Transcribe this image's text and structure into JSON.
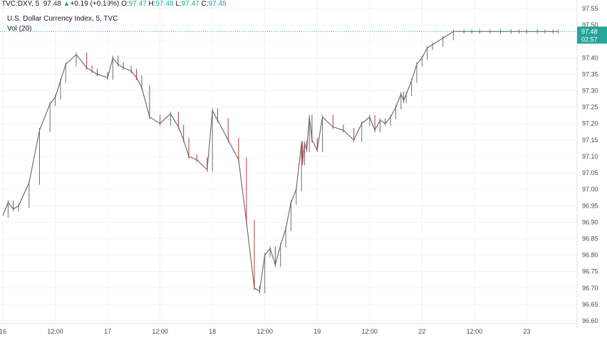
{
  "header": {
    "symbol": "TVC:DXY, 5",
    "last": "97.48",
    "change_arrow": "▲",
    "change": "+0.19 (+0.19%)",
    "o_label": "O:",
    "o_value": "97.47",
    "h_label": "H:",
    "h_value": "97.48",
    "l_label": "L:",
    "l_value": "97.47",
    "c_label": "C:",
    "c_value": "97.48"
  },
  "legend": {
    "title": "U.S. Dollar Currency Index, 5, TVC",
    "volume": "Vol (20)"
  },
  "price_badge": {
    "value": "97.48",
    "timer": "02:57"
  },
  "colors": {
    "up": "#26a69a",
    "down": "#ef5350",
    "candle_up": "#6f6f6f",
    "candle_down": "#b23b3b",
    "grid": "#f0f3fa",
    "price_line": "#26a69a",
    "badge": "#26a69a"
  },
  "chart_data": {
    "type": "line",
    "title": "U.S. Dollar Currency Index, 5, TVC",
    "y_ticks": [
      "97.55",
      "97.50",
      "97.45",
      "97.40",
      "97.35",
      "97.30",
      "97.25",
      "97.20",
      "97.15",
      "97.10",
      "97.05",
      "97.00",
      "96.95",
      "96.90",
      "96.85",
      "96.80",
      "96.75",
      "96.70",
      "96.65",
      "96.60"
    ],
    "ylim": [
      96.6,
      97.55
    ],
    "x_ticks": [
      "16",
      "12:00",
      "17",
      "12:00",
      "18",
      "12:00",
      "19",
      "12:00",
      "22",
      "12:00",
      "23"
    ],
    "x_tick_index": [
      0,
      1,
      2,
      3,
      4,
      5,
      6,
      7,
      8,
      9,
      10
    ],
    "xlim": [
      0,
      10.96
    ],
    "grid": true,
    "series": [
      {
        "x": [
          0,
          0.1,
          0.2,
          0.3,
          0.5,
          0.7,
          0.9,
          1.0,
          1.1,
          1.2,
          1.4,
          1.6,
          1.7,
          1.8,
          2.0,
          2.1,
          2.2,
          2.3,
          2.45,
          2.55,
          2.65,
          2.8,
          3.0,
          3.2,
          3.35,
          3.45,
          3.55,
          3.7,
          3.9,
          4.0,
          4.1,
          4.3,
          4.5,
          4.65,
          4.8,
          4.9,
          5.0,
          5.1,
          5.2,
          5.3,
          5.4,
          5.5,
          5.6,
          5.7,
          5.72,
          5.76,
          5.8,
          5.85,
          5.9,
          6.0,
          6.1,
          6.3,
          6.5,
          6.7,
          6.85,
          7.0,
          7.1,
          7.2,
          7.3,
          7.4,
          7.5,
          7.6,
          7.65,
          7.7,
          7.8,
          7.9,
          8.0,
          8.1,
          8.2,
          8.4,
          8.6,
          8.8,
          8.95,
          9.1,
          9.3,
          9.5,
          9.7,
          9.85,
          10.0,
          10.2,
          10.35,
          10.5,
          10.6
        ],
        "values": [
          96.92,
          96.96,
          96.94,
          96.95,
          97.02,
          97.18,
          97.26,
          97.28,
          97.33,
          97.38,
          97.41,
          97.37,
          97.36,
          97.35,
          97.34,
          97.4,
          97.38,
          97.37,
          97.36,
          97.34,
          97.31,
          97.22,
          97.2,
          97.23,
          97.19,
          97.15,
          97.1,
          97.09,
          97.06,
          97.24,
          97.21,
          97.15,
          97.09,
          96.9,
          96.7,
          96.69,
          96.8,
          96.82,
          96.77,
          96.83,
          96.88,
          96.96,
          97.0,
          97.14,
          97.08,
          97.14,
          97.12,
          97.22,
          97.15,
          97.12,
          97.22,
          97.19,
          97.18,
          97.15,
          97.2,
          97.22,
          97.18,
          97.21,
          97.2,
          97.22,
          97.25,
          97.29,
          97.27,
          97.29,
          97.33,
          97.38,
          97.4,
          97.43,
          97.44,
          97.46,
          97.48,
          97.48,
          97.48,
          97.48,
          97.48,
          97.48,
          97.48,
          97.48,
          97.48,
          97.48,
          97.48,
          97.48,
          97.48
        ]
      }
    ],
    "last_price": 97.48
  }
}
